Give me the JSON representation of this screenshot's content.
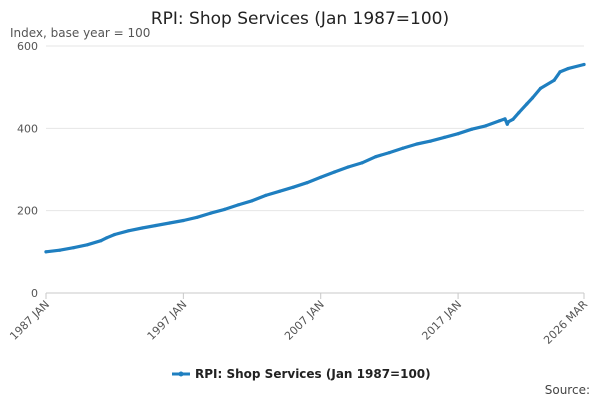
{
  "chart_data": {
    "type": "line",
    "title": "RPI: Shop Services (Jan 1987=100)",
    "ylabel": "Index, base year = 100",
    "xlabel": "",
    "x_tick_labels": [
      "1987 JAN",
      "1997 JAN",
      "2007 JAN",
      "2017 JAN",
      "2026 MAR"
    ],
    "y_ticks": [
      0,
      200,
      400,
      600
    ],
    "ylim": [
      0,
      600
    ],
    "xlim": [
      "1987-01",
      "2026-03"
    ],
    "grid": true,
    "legend_position": "bottom",
    "source_label": "Source:",
    "series": [
      {
        "name": "RPI: Shop Services (Jan 1987=100)",
        "color": "#1f7fc0",
        "x": [
          "1987-01",
          "1988-01",
          "1989-01",
          "1990-01",
          "1991-01",
          "1991-06",
          "1992-01",
          "1993-01",
          "1994-01",
          "1995-01",
          "1996-01",
          "1997-01",
          "1998-01",
          "1999-01",
          "2000-01",
          "2001-01",
          "2002-01",
          "2003-01",
          "2004-01",
          "2005-01",
          "2006-01",
          "2007-01",
          "2008-01",
          "2009-01",
          "2010-01",
          "2011-01",
          "2012-01",
          "2013-01",
          "2014-01",
          "2015-01",
          "2016-01",
          "2017-01",
          "2018-01",
          "2019-01",
          "2020-01",
          "2020-06",
          "2020-08",
          "2020-09",
          "2021-01",
          "2021-06",
          "2022-01",
          "2022-06",
          "2023-01",
          "2024-01",
          "2024-06",
          "2025-01",
          "2026-03"
        ],
        "values": [
          100,
          104,
          110,
          117,
          127,
          134,
          142,
          151,
          158,
          164,
          170,
          176,
          184,
          194,
          203,
          214,
          224,
          237,
          247,
          257,
          268,
          281,
          294,
          306,
          316,
          331,
          341,
          352,
          362,
          369,
          378,
          387,
          398,
          406,
          418,
          423,
          410,
          416,
          422,
          438,
          459,
          474,
          497,
          517,
          537,
          545,
          555
        ]
      }
    ]
  }
}
